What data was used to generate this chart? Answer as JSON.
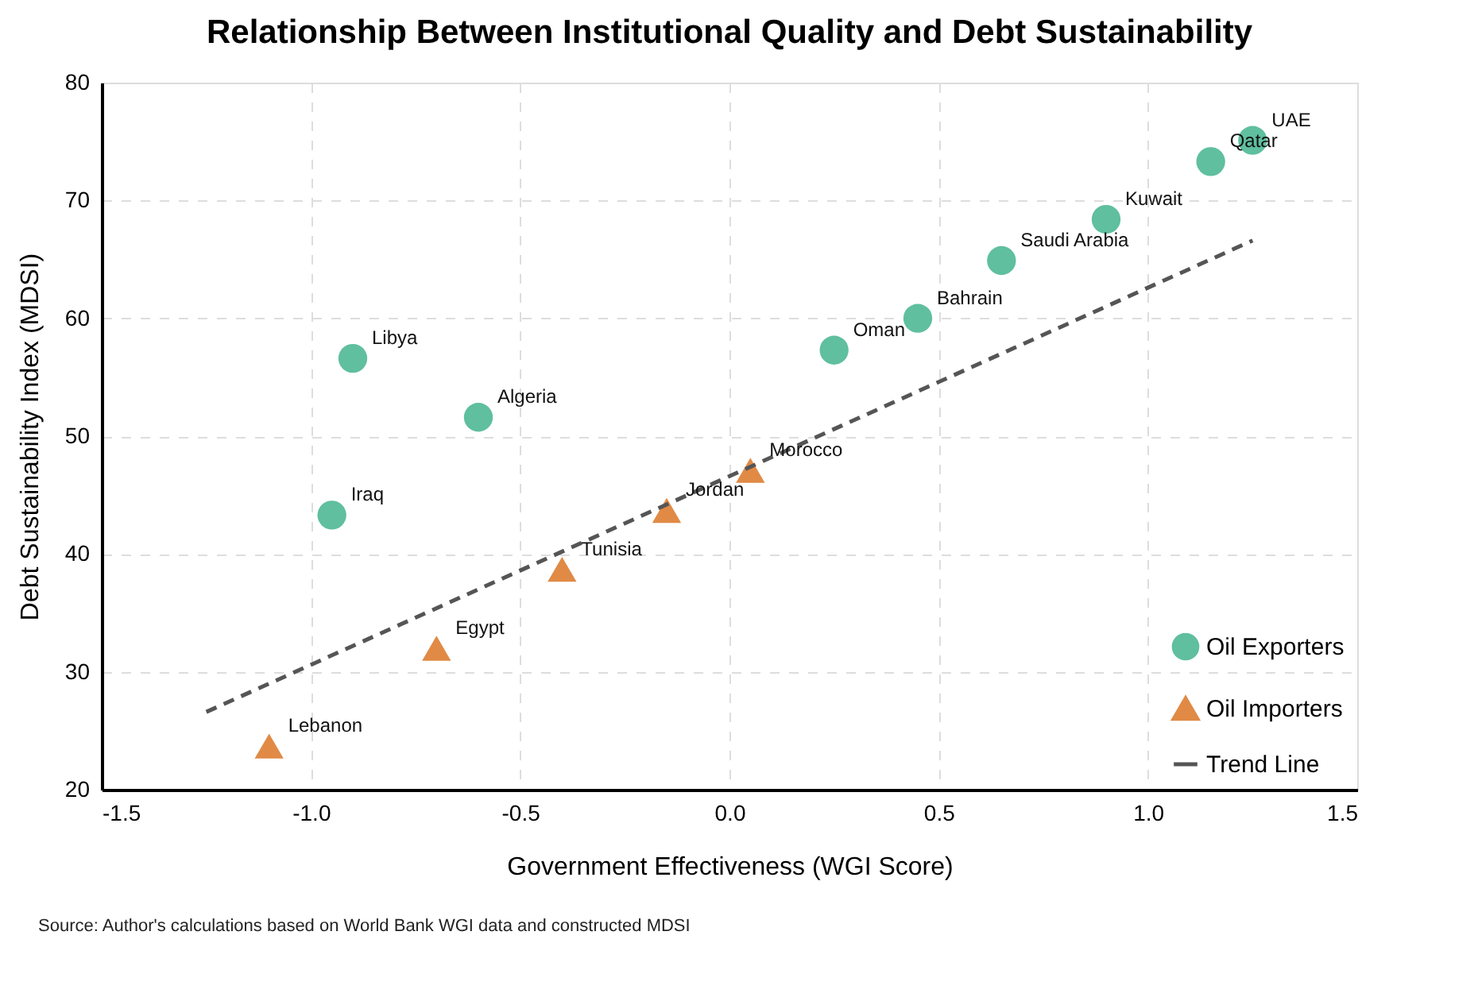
{
  "chart_data": {
    "type": "scatter",
    "title": "Relationship Between Institutional Quality and Debt Sustainability",
    "xlabel": "Government Effectiveness (WGI Score)",
    "ylabel": "Debt Sustainability Index (MDSI)",
    "series": [
      {
        "name": "Oil Exporters",
        "color": "#5fbf9f",
        "marker": "circle",
        "x": [
          -0.9,
          -0.6,
          -0.95,
          0.25,
          0.45,
          0.65,
          0.9,
          1.15,
          1.25
        ],
        "values": [
          56.6,
          51.6,
          43.3,
          57.3,
          60.0,
          64.9,
          68.4,
          73.3,
          75.1
        ]
      },
      {
        "name": "Oil Importers",
        "color": "#e08a45",
        "marker": "triangle",
        "x": [
          -1.1,
          -0.7,
          -0.4,
          -0.15,
          0.05
        ],
        "values": [
          23.7,
          32.0,
          38.7,
          43.7,
          47.1
        ]
      },
      {
        "name": "Trend Line",
        "type": "line",
        "color": "#555555",
        "line_style": "dashed",
        "x": [
          -1.25,
          1.25
        ],
        "values": [
          26.6,
          66.6
        ]
      }
    ],
    "annotations": [
      {
        "text": "Libya",
        "x": -0.9,
        "y": 56.6
      },
      {
        "text": "Algeria",
        "x": -0.6,
        "y": 51.6
      },
      {
        "text": "Iraq",
        "x": -0.95,
        "y": 43.3
      },
      {
        "text": "Oman",
        "x": 0.25,
        "y": 57.3
      },
      {
        "text": "Bahrain",
        "x": 0.45,
        "y": 60.0
      },
      {
        "text": "Saudi Arabia",
        "x": 0.65,
        "y": 64.9
      },
      {
        "text": "Kuwait",
        "x": 0.9,
        "y": 68.4
      },
      {
        "text": "Qatar",
        "x": 1.15,
        "y": 73.3
      },
      {
        "text": "UAE",
        "x": 1.25,
        "y": 75.1
      },
      {
        "text": "Lebanon",
        "x": -1.1,
        "y": 23.7
      },
      {
        "text": "Egypt",
        "x": -0.7,
        "y": 32.0
      },
      {
        "text": "Tunisia",
        "x": -0.4,
        "y": 38.7
      },
      {
        "text": "Jordan",
        "x": -0.15,
        "y": 43.7
      },
      {
        "text": "Morocco",
        "x": 0.05,
        "y": 47.1
      },
      "Source: Author's calculations based on World Bank WGI data and constructed MDSI"
    ],
    "xlim": [
      -1.5,
      1.5
    ],
    "xticks": [
      {
        "value": -1.5,
        "label": "-1.5"
      },
      {
        "value": -1.0,
        "label": "-1.0"
      },
      {
        "value": -0.5,
        "label": "-0.5"
      },
      {
        "value": 0.0,
        "label": "0.0"
      },
      {
        "value": 0.5,
        "label": "0.5"
      },
      {
        "value": 1.0,
        "label": "1.0"
      },
      {
        "value": 1.5,
        "label": "1.5"
      }
    ],
    "ylim": [
      20,
      80
    ],
    "yticks": [
      20,
      30,
      40,
      50,
      60,
      70,
      80
    ],
    "grid": true,
    "legend": "bottom right"
  }
}
